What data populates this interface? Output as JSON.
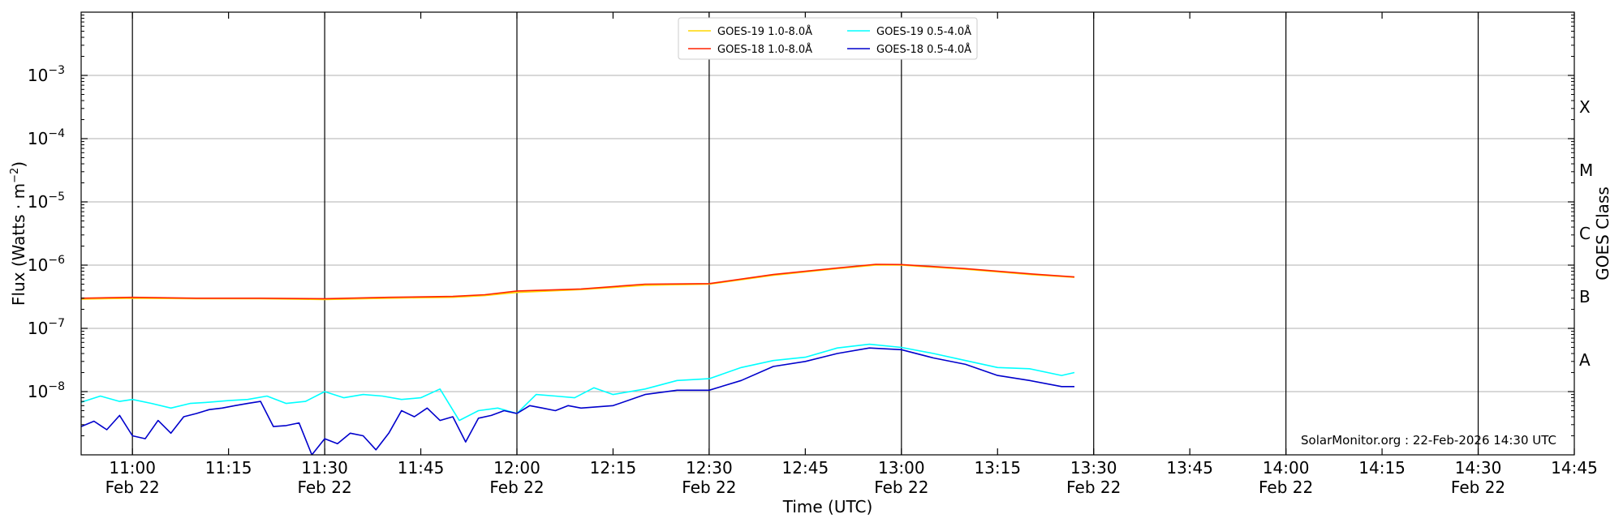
{
  "chart_data": {
    "type": "line",
    "xlabel": "Time (UTC)",
    "ylabel": "Flux (Watts · m",
    "ylabel_sup": "−2",
    "ylabel_close": ")",
    "right_label": "GOES Class",
    "credit": "SolarMonitor.org : 22-Feb-2026 14:30 UTC",
    "xlim": [
      "10:52",
      "14:45"
    ],
    "ylim_exp": [
      -9,
      -2
    ],
    "yscale": "log",
    "grid": "horizontal",
    "legend_position": "top-center",
    "x_ticks": [
      {
        "t": "11:00",
        "label": "11:00",
        "date": "Feb 22",
        "vline": true
      },
      {
        "t": "11:15",
        "label": "11:15",
        "date": "",
        "vline": false
      },
      {
        "t": "11:30",
        "label": "11:30",
        "date": "Feb 22",
        "vline": true
      },
      {
        "t": "11:45",
        "label": "11:45",
        "date": "",
        "vline": false
      },
      {
        "t": "12:00",
        "label": "12:00",
        "date": "Feb 22",
        "vline": true
      },
      {
        "t": "12:15",
        "label": "12:15",
        "date": "",
        "vline": false
      },
      {
        "t": "12:30",
        "label": "12:30",
        "date": "Feb 22",
        "vline": true
      },
      {
        "t": "12:45",
        "label": "12:45",
        "date": "",
        "vline": false
      },
      {
        "t": "13:00",
        "label": "13:00",
        "date": "Feb 22",
        "vline": true
      },
      {
        "t": "13:15",
        "label": "13:15",
        "date": "",
        "vline": false
      },
      {
        "t": "13:30",
        "label": "13:30",
        "date": "Feb 22",
        "vline": true
      },
      {
        "t": "13:45",
        "label": "13:45",
        "date": "",
        "vline": false
      },
      {
        "t": "14:00",
        "label": "14:00",
        "date": "Feb 22",
        "vline": true
      },
      {
        "t": "14:15",
        "label": "14:15",
        "date": "",
        "vline": false
      },
      {
        "t": "14:30",
        "label": "14:30",
        "date": "Feb 22",
        "vline": true
      },
      {
        "t": "14:45",
        "label": "14:45",
        "date": "",
        "vline": false
      }
    ],
    "y_ticks": [
      {
        "exp": -8,
        "base": "10",
        "sup": "−8"
      },
      {
        "exp": -7,
        "base": "10",
        "sup": "−7"
      },
      {
        "exp": -6,
        "base": "10",
        "sup": "−6"
      },
      {
        "exp": -5,
        "base": "10",
        "sup": "−5"
      },
      {
        "exp": -4,
        "base": "10",
        "sup": "−4"
      },
      {
        "exp": -3,
        "base": "10",
        "sup": "−3"
      }
    ],
    "goes_classes": [
      {
        "label": "A",
        "exp": -7.5
      },
      {
        "label": "B",
        "exp": -6.5
      },
      {
        "label": "C",
        "exp": -5.5
      },
      {
        "label": "M",
        "exp": -4.5
      },
      {
        "label": "X",
        "exp": -3.5
      }
    ],
    "series": [
      {
        "name": "GOES-19 1.0-8.0Å",
        "color": "#ffd700",
        "t": [
          "10:52",
          "11:00",
          "11:10",
          "11:20",
          "11:30",
          "11:40",
          "11:50",
          "11:55",
          "12:00",
          "12:10",
          "12:20",
          "12:30",
          "12:40",
          "12:50",
          "12:56",
          "13:00",
          "13:10",
          "13:20",
          "13:27"
        ],
        "values": [
          2.9e-07,
          3e-07,
          2.95e-07,
          2.95e-07,
          2.85e-07,
          3e-07,
          3.1e-07,
          3.3e-07,
          3.7e-07,
          4.1e-07,
          4.8e-07,
          5e-07,
          6.9e-07,
          8.8e-07,
          1e-06,
          1e-06,
          8.6e-07,
          7.1e-07,
          6.4e-07
        ]
      },
      {
        "name": "GOES-19 0.5-4.0Å",
        "color": "#00ffff",
        "t": [
          "10:52",
          "10:55",
          "10:58",
          "11:00",
          "11:03",
          "11:06",
          "11:09",
          "11:12",
          "11:15",
          "11:18",
          "11:21",
          "11:24",
          "11:27",
          "11:30",
          "11:33",
          "11:36",
          "11:39",
          "11:42",
          "11:45",
          "11:48",
          "11:51",
          "11:54",
          "11:57",
          "12:00",
          "12:03",
          "12:06",
          "12:09",
          "12:12",
          "12:15",
          "12:20",
          "12:25",
          "12:30",
          "12:35",
          "12:40",
          "12:45",
          "12:50",
          "12:55",
          "13:00",
          "13:05",
          "13:10",
          "13:15",
          "13:20",
          "13:25",
          "13:27"
        ],
        "values": [
          6.8e-09,
          8.5e-09,
          7e-09,
          7.5e-09,
          6.5e-09,
          5.5e-09,
          6.5e-09,
          6.8e-09,
          7.2e-09,
          7.5e-09,
          8.5e-09,
          6.5e-09,
          7e-09,
          1e-08,
          8e-09,
          9e-09,
          8.5e-09,
          7.5e-09,
          8e-09,
          1.1e-08,
          3.5e-09,
          5e-09,
          5.5e-09,
          4.5e-09,
          9e-09,
          8.5e-09,
          8e-09,
          1.15e-08,
          9e-09,
          1.1e-08,
          1.5e-08,
          1.6e-08,
          2.4e-08,
          3.1e-08,
          3.5e-08,
          4.9e-08,
          5.6e-08,
          5e-08,
          4e-08,
          3.1e-08,
          2.4e-08,
          2.3e-08,
          1.8e-08,
          2e-08
        ]
      },
      {
        "name": "GOES-18 1.0-8.0Å",
        "color": "#ff2200",
        "t": [
          "10:52",
          "11:00",
          "11:10",
          "11:20",
          "11:30",
          "11:40",
          "11:50",
          "11:55",
          "12:00",
          "12:10",
          "12:20",
          "12:30",
          "12:40",
          "12:50",
          "12:56",
          "13:00",
          "13:10",
          "13:20",
          "13:27"
        ],
        "values": [
          3e-07,
          3.1e-07,
          3e-07,
          3e-07,
          2.95e-07,
          3.1e-07,
          3.2e-07,
          3.4e-07,
          3.9e-07,
          4.2e-07,
          5e-07,
          5.1e-07,
          7.1e-07,
          9e-07,
          1.03e-06,
          1.02e-06,
          8.8e-07,
          7.3e-07,
          6.5e-07
        ]
      },
      {
        "name": "GOES-18 0.5-4.0Å",
        "color": "#0000cc",
        "t": [
          "10:52",
          "10:54",
          "10:56",
          "10:58",
          "11:00",
          "11:02",
          "11:04",
          "11:06",
          "11:08",
          "11:10",
          "11:12",
          "11:14",
          "11:16",
          "11:18",
          "11:20",
          "11:22",
          "11:24",
          "11:26",
          "11:28",
          "11:30",
          "11:32",
          "11:34",
          "11:36",
          "11:38",
          "11:40",
          "11:42",
          "11:44",
          "11:46",
          "11:48",
          "11:50",
          "11:52",
          "11:54",
          "11:56",
          "11:58",
          "12:00",
          "12:02",
          "12:04",
          "12:06",
          "12:08",
          "12:10",
          "12:15",
          "12:20",
          "12:25",
          "12:30",
          "12:35",
          "12:40",
          "12:45",
          "12:50",
          "12:55",
          "13:00",
          "13:05",
          "13:10",
          "13:15",
          "13:20",
          "13:25",
          "13:27"
        ],
        "values": [
          2.8e-09,
          3.4e-09,
          2.5e-09,
          4.2e-09,
          2e-09,
          1.8e-09,
          3.5e-09,
          2.2e-09,
          4e-09,
          4.5e-09,
          5.2e-09,
          5.5e-09,
          6e-09,
          6.5e-09,
          7e-09,
          2.8e-09,
          2.9e-09,
          3.2e-09,
          1e-09,
          1.8e-09,
          1.5e-09,
          2.2e-09,
          2e-09,
          1.2e-09,
          2.2e-09,
          5e-09,
          4e-09,
          5.5e-09,
          3.5e-09,
          4e-09,
          1.6e-09,
          3.8e-09,
          4.2e-09,
          5e-09,
          4.5e-09,
          6e-09,
          5.5e-09,
          5e-09,
          6e-09,
          5.5e-09,
          6e-09,
          9e-09,
          1.05e-08,
          1.05e-08,
          1.5e-08,
          2.5e-08,
          3e-08,
          4e-08,
          4.9e-08,
          4.6e-08,
          3.4e-08,
          2.7e-08,
          1.8e-08,
          1.5e-08,
          1.2e-08,
          1.2e-08
        ]
      }
    ]
  }
}
